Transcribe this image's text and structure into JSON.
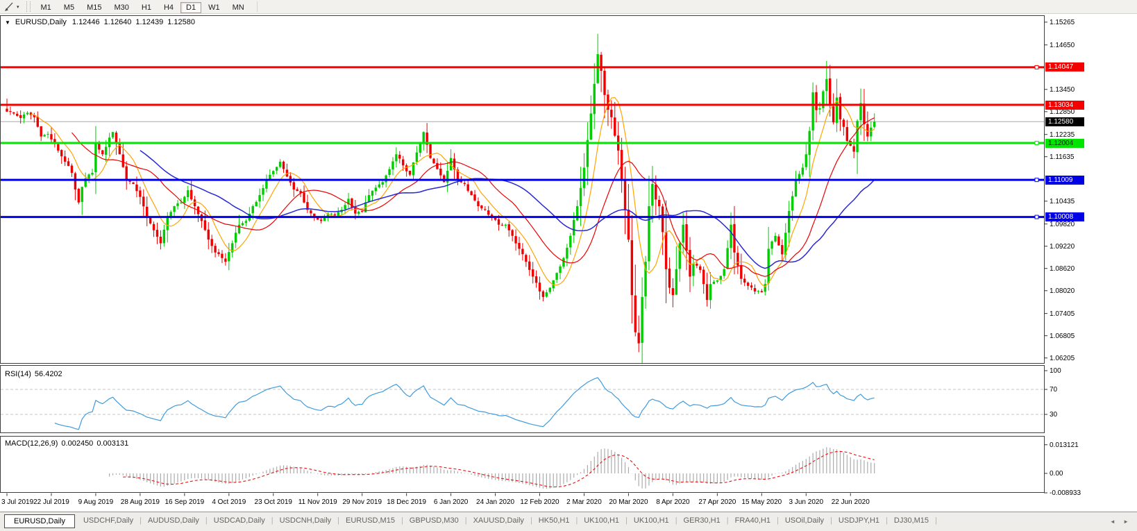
{
  "toolbar": {
    "dropdown_icon": "▾",
    "timeframes": [
      "M1",
      "M5",
      "M15",
      "M30",
      "H1",
      "H4",
      "D1",
      "W1",
      "MN"
    ],
    "active_timeframe": "D1"
  },
  "header": {
    "collapse_icon": "▼",
    "symbol": "EURUSD,Daily",
    "open": "1.12446",
    "high": "1.12640",
    "low": "1.12439",
    "close": "1.12580"
  },
  "price_axis": {
    "ticks": [
      "1.15265",
      "1.14650",
      "1.13450",
      "1.12850",
      "1.12235",
      "1.11635",
      "1.10435",
      "1.09820",
      "1.09220",
      "1.08620",
      "1.08020",
      "1.07405",
      "1.06805",
      "1.06205"
    ],
    "badges": [
      {
        "label": "1.14047",
        "price": 1.14047,
        "bg": "#f40000",
        "fg": "#ffffff"
      },
      {
        "label": "1.13034",
        "price": 1.13034,
        "bg": "#f40000",
        "fg": "#ffffff"
      },
      {
        "label": "1.12580",
        "price": 1.1258,
        "bg": "#000000",
        "fg": "#ffffff"
      },
      {
        "label": "1.12004",
        "price": 1.12004,
        "bg": "#00e400",
        "fg": "#002a00"
      },
      {
        "label": "1.11009",
        "price": 1.11009,
        "bg": "#0000e6",
        "fg": "#ffffff"
      },
      {
        "label": "1.10008",
        "price": 1.10008,
        "bg": "#0000e6",
        "fg": "#ffffff"
      }
    ]
  },
  "hlines": [
    {
      "price": 1.14047,
      "color": "#f40000",
      "width": 3,
      "marker": true
    },
    {
      "price": 1.13034,
      "color": "#f40000",
      "width": 3,
      "marker": false
    },
    {
      "price": 1.12004,
      "color": "#00e400",
      "width": 3,
      "marker": true
    },
    {
      "price": 1.11009,
      "color": "#0000e6",
      "width": 3,
      "marker": true
    },
    {
      "price": 1.10008,
      "color": "#0000e6",
      "width": 3,
      "marker": true
    }
  ],
  "current_price": {
    "price": 1.1258,
    "line_color": "#c0c0c0"
  },
  "rsi": {
    "name": "RSI(14)",
    "value": "56.4202",
    "line_color": "#3e9bdb",
    "axis_labels": [
      {
        "label": "100",
        "value": 100
      },
      {
        "label": "70",
        "value": 70
      },
      {
        "label": "30",
        "value": 30
      }
    ],
    "dashed_levels": [
      70,
      30
    ]
  },
  "macd": {
    "name": "MACD(12,26,9)",
    "main_value": "0.002450",
    "signal_value": "0.003131",
    "bar_color": "#ababab",
    "signal_color": "#e81010",
    "axis_labels": [
      {
        "label": "0.013121",
        "value": 0.013121
      },
      {
        "label": "0.00",
        "value": 0
      },
      {
        "label": "-0.008933",
        "value": -0.008933
      }
    ]
  },
  "time_axis": {
    "labels": [
      "3 Jul 2019",
      "22 Jul 2019",
      "9 Aug 2019",
      "28 Aug 2019",
      "16 Sep 2019",
      "4 Oct 2019",
      "23 Oct 2019",
      "11 Nov 2019",
      "29 Nov 2019",
      "18 Dec 2019",
      "6 Jan 2020",
      "24 Jan 2020",
      "12 Feb 2020",
      "2 Mar 2020",
      "20 Mar 2020",
      "8 Apr 2020",
      "27 Apr 2020",
      "15 May 2020",
      "3 Jun 2020",
      "22 Jun 2020"
    ],
    "candles_per_label": 13
  },
  "tabs": {
    "items": [
      "EURUSD,Daily",
      "USDCHF,Daily",
      "AUDUSD,Daily",
      "USDCAD,Daily",
      "USDCNH,Daily",
      "EURUSD,M15",
      "GBPUSD,M30",
      "XAUUSD,Daily",
      "HK50,H1",
      "UK100,H1",
      "UK100,H1",
      "GER30,H1",
      "FRA40,H1",
      "USOil,Daily",
      "USDJPY,H1",
      "DJ30,M15"
    ],
    "active_index": 0,
    "scroll_left_icon": "◄",
    "scroll_right_icon": "►"
  },
  "chart_data": {
    "type": "candlestick",
    "symbol": "EURUSD",
    "period": "Daily",
    "num_candles": 255,
    "price_range": [
      1.0605,
      1.1545
    ],
    "up_color": "#00cd00",
    "down_color": "#ee0000",
    "close_anchors": [
      [
        0,
        1.1285
      ],
      [
        2,
        1.128
      ],
      [
        4,
        1.1268
      ],
      [
        6,
        1.1282
      ],
      [
        8,
        1.127
      ],
      [
        10,
        1.1218
      ],
      [
        12,
        1.1225
      ],
      [
        13,
        1.121
      ],
      [
        15,
        1.118
      ],
      [
        17,
        1.115
      ],
      [
        19,
        1.112
      ],
      [
        20,
        1.1075
      ],
      [
        21,
        1.104
      ],
      [
        22,
        1.1082
      ],
      [
        23,
        1.1105
      ],
      [
        25,
        1.112
      ],
      [
        26,
        1.12
      ],
      [
        28,
        1.117
      ],
      [
        30,
        1.1215
      ],
      [
        31,
        1.123
      ],
      [
        33,
        1.117
      ],
      [
        35,
        1.11
      ],
      [
        37,
        1.109
      ],
      [
        39,
        1.1055
      ],
      [
        41,
        1.1
      ],
      [
        43,
        1.0965
      ],
      [
        45,
        1.093
      ],
      [
        47,
        1.1
      ],
      [
        49,
        1.103
      ],
      [
        51,
        1.104
      ],
      [
        53,
        1.1073
      ],
      [
        55,
        1.103
      ],
      [
        57,
        1.099
      ],
      [
        59,
        1.094
      ],
      [
        61,
        1.0905
      ],
      [
        63,
        1.089
      ],
      [
        64,
        1.088
      ],
      [
        66,
        1.093
      ],
      [
        68,
        1.098
      ],
      [
        70,
        1.099
      ],
      [
        72,
        1.103
      ],
      [
        74,
        1.106
      ],
      [
        76,
        1.11
      ],
      [
        78,
        1.1125
      ],
      [
        80,
        1.115
      ],
      [
        82,
        1.111
      ],
      [
        84,
        1.1075
      ],
      [
        86,
        1.1065
      ],
      [
        88,
        1.102
      ],
      [
        90,
        1.1
      ],
      [
        92,
        1.099
      ],
      [
        94,
        1.101
      ],
      [
        96,
        1.1005
      ],
      [
        98,
        1.102
      ],
      [
        100,
        1.105
      ],
      [
        102,
        1.101
      ],
      [
        104,
        1.1015
      ],
      [
        106,
        1.106
      ],
      [
        108,
        1.108
      ],
      [
        110,
        1.1095
      ],
      [
        112,
        1.113
      ],
      [
        114,
        1.117
      ],
      [
        116,
        1.114
      ],
      [
        118,
        1.1115
      ],
      [
        120,
        1.1175
      ],
      [
        122,
        1.123
      ],
      [
        124,
        1.116
      ],
      [
        126,
        1.113
      ],
      [
        128,
        1.1095
      ],
      [
        130,
        1.116
      ],
      [
        132,
        1.11
      ],
      [
        134,
        1.109
      ],
      [
        136,
        1.106
      ],
      [
        138,
        1.103
      ],
      [
        140,
        1.102
      ],
      [
        142,
        1.1
      ],
      [
        144,
        1.098
      ],
      [
        146,
        1.098
      ],
      [
        148,
        1.095
      ],
      [
        150,
        1.0915
      ],
      [
        152,
        1.088
      ],
      [
        154,
        1.084
      ],
      [
        156,
        1.08
      ],
      [
        157,
        1.0785
      ],
      [
        159,
        1.081
      ],
      [
        161,
        1.085
      ],
      [
        163,
        1.089
      ],
      [
        165,
        1.095
      ],
      [
        167,
        1.103
      ],
      [
        169,
        1.1134
      ],
      [
        171,
        1.128
      ],
      [
        172,
        1.136
      ],
      [
        173,
        1.144
      ],
      [
        174,
        1.1395
      ],
      [
        175,
        1.133
      ],
      [
        176,
        1.129
      ],
      [
        177,
        1.127
      ],
      [
        178,
        1.122
      ],
      [
        179,
        1.118
      ],
      [
        180,
        1.11
      ],
      [
        181,
        1.102
      ],
      [
        182,
        1.094
      ],
      [
        183,
        1.079
      ],
      [
        184,
        1.069
      ],
      [
        185,
        1.066
      ],
      [
        186,
        1.0785
      ],
      [
        187,
        1.088
      ],
      [
        188,
        1.103
      ],
      [
        189,
        1.109
      ],
      [
        190,
        1.1048
      ],
      [
        191,
        1.103
      ],
      [
        192,
        1.096
      ],
      [
        193,
        1.086
      ],
      [
        194,
        1.081
      ],
      [
        195,
        1.079
      ],
      [
        196,
        1.086
      ],
      [
        197,
        1.093
      ],
      [
        198,
        1.098
      ],
      [
        199,
        1.091
      ],
      [
        200,
        1.084
      ],
      [
        201,
        1.0875
      ],
      [
        203,
        1.0858
      ],
      [
        204,
        1.082
      ],
      [
        205,
        1.0777
      ],
      [
        206,
        1.082
      ],
      [
        208,
        1.083
      ],
      [
        210,
        1.086
      ],
      [
        212,
        1.098
      ],
      [
        213,
        1.0905
      ],
      [
        215,
        1.0834
      ],
      [
        217,
        1.0815
      ],
      [
        219,
        1.08
      ],
      [
        221,
        1.0798
      ],
      [
        222,
        1.082
      ],
      [
        223,
        1.0915
      ],
      [
        225,
        1.095
      ],
      [
        227,
        1.09
      ],
      [
        229,
        1.1017
      ],
      [
        231,
        1.1101
      ],
      [
        233,
        1.1134
      ],
      [
        234,
        1.117
      ],
      [
        235,
        1.1233
      ],
      [
        236,
        1.1337
      ],
      [
        237,
        1.1289
      ],
      [
        238,
        1.1294
      ],
      [
        239,
        1.134
      ],
      [
        240,
        1.1373
      ],
      [
        241,
        1.1301
      ],
      [
        242,
        1.1256
      ],
      [
        243,
        1.1323
      ],
      [
        244,
        1.1264
      ],
      [
        245,
        1.1244
      ],
      [
        246,
        1.1206
      ],
      [
        248,
        1.1177
      ],
      [
        249,
        1.126
      ],
      [
        250,
        1.1308
      ],
      [
        251,
        1.1251
      ],
      [
        252,
        1.1218
      ],
      [
        253,
        1.1242
      ],
      [
        254,
        1.1258
      ]
    ],
    "wick_overrides": {
      "0": {
        "high": 1.132
      },
      "173": {
        "high": 1.1495
      },
      "185": {
        "low": 1.0636
      },
      "240": {
        "high": 1.1422
      }
    },
    "moving_averages": [
      {
        "period": 8,
        "color": "#ffa500",
        "width": 1.2
      },
      {
        "period": 20,
        "color": "#ee0000",
        "width": 1.2
      },
      {
        "period": 40,
        "color": "#2828d4",
        "width": 1.5
      }
    ],
    "rsi_period": 14,
    "macd_params": [
      12,
      26,
      9
    ]
  }
}
